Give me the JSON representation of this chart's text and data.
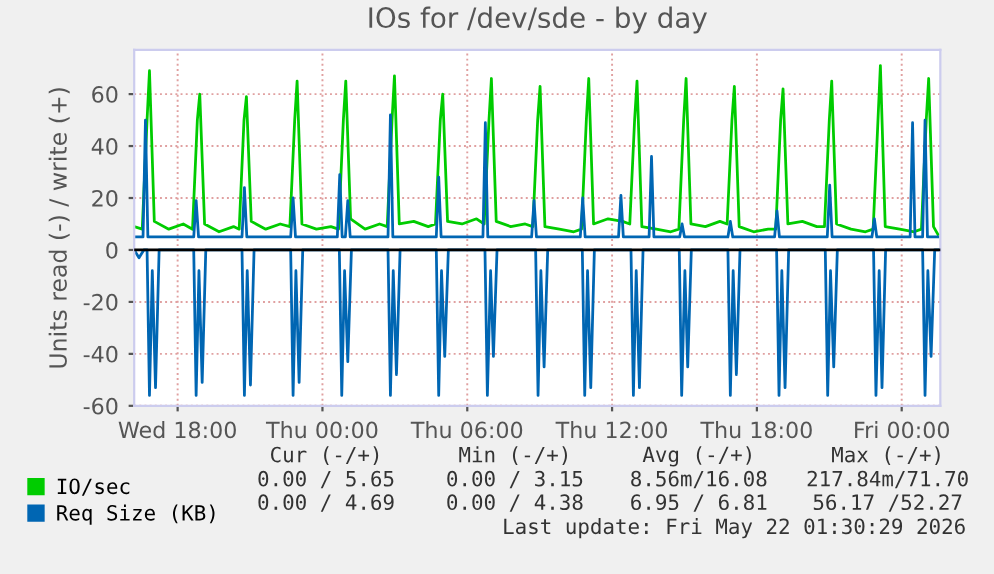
{
  "chart_data": {
    "type": "line",
    "title": "IOs for /dev/sde - by day",
    "ylabel": "Units read (-) / write (+)",
    "xlim": [
      "2026-05-20T16:12",
      "2026-05-22T01:36"
    ],
    "xticks": [
      {
        "value": "2026-05-20T18:00",
        "label": "Wed 18:00"
      },
      {
        "value": "2026-05-21T00:00",
        "label": "Thu 00:00"
      },
      {
        "value": "2026-05-21T06:00",
        "label": "Thu 06:00"
      },
      {
        "value": "2026-05-21T12:00",
        "label": "Thu 12:00"
      },
      {
        "value": "2026-05-21T18:00",
        "label": "Thu 18:00"
      },
      {
        "value": "2026-05-22T00:00",
        "label": "Fri 00:00"
      }
    ],
    "ylim": [
      -60,
      77
    ],
    "yticks": [
      -60,
      -40,
      -20,
      0,
      20,
      40,
      60
    ],
    "grid": true,
    "legend": "bottom",
    "ref_lines": [
      {
        "axis": "y",
        "value": 0,
        "color": "#000000"
      }
    ],
    "series": [
      {
        "name": "IO/sec",
        "color": "#00cc00",
        "x": [
          "2026-05-20T16:12",
          "2026-05-20T16:32",
          "2026-05-20T16:44",
          "2026-05-20T16:50",
          "2026-05-20T17:02",
          "2026-05-20T17:38",
          "2026-05-20T18:14",
          "2026-05-20T18:37",
          "2026-05-20T18:49",
          "2026-05-20T18:55",
          "2026-05-20T19:07",
          "2026-05-20T19:43",
          "2026-05-20T20:19",
          "2026-05-20T20:33",
          "2026-05-20T20:45",
          "2026-05-20T20:51",
          "2026-05-20T21:03",
          "2026-05-20T21:39",
          "2026-05-20T22:15",
          "2026-05-20T22:39",
          "2026-05-20T22:51",
          "2026-05-20T22:57",
          "2026-05-20T23:09",
          "2026-05-20T23:45",
          "2026-05-21T00:21",
          "2026-05-21T00:40",
          "2026-05-21T00:52",
          "2026-05-21T00:58",
          "2026-05-21T01:10",
          "2026-05-21T01:46",
          "2026-05-21T02:22",
          "2026-05-21T02:41",
          "2026-05-21T02:53",
          "2026-05-21T02:59",
          "2026-05-21T03:11",
          "2026-05-21T03:47",
          "2026-05-21T04:23",
          "2026-05-21T04:41",
          "2026-05-21T04:53",
          "2026-05-21T04:59",
          "2026-05-21T05:11",
          "2026-05-21T05:47",
          "2026-05-21T06:23",
          "2026-05-21T06:42",
          "2026-05-21T06:54",
          "2026-05-21T07:00",
          "2026-05-21T07:12",
          "2026-05-21T07:48",
          "2026-05-21T08:24",
          "2026-05-21T08:43",
          "2026-05-21T08:55",
          "2026-05-21T09:01",
          "2026-05-21T09:13",
          "2026-05-21T09:49",
          "2026-05-21T10:25",
          "2026-05-21T10:44",
          "2026-05-21T10:56",
          "2026-05-21T11:02",
          "2026-05-21T11:14",
          "2026-05-21T11:50",
          "2026-05-21T12:26",
          "2026-05-21T12:44",
          "2026-05-21T12:56",
          "2026-05-21T13:02",
          "2026-05-21T13:14",
          "2026-05-21T13:50",
          "2026-05-21T14:26",
          "2026-05-21T14:46",
          "2026-05-21T14:58",
          "2026-05-21T15:04",
          "2026-05-21T15:16",
          "2026-05-21T15:52",
          "2026-05-21T16:28",
          "2026-05-21T16:46",
          "2026-05-21T16:58",
          "2026-05-21T17:04",
          "2026-05-21T17:16",
          "2026-05-21T17:52",
          "2026-05-21T18:28",
          "2026-05-21T18:47",
          "2026-05-21T18:59",
          "2026-05-21T19:05",
          "2026-05-21T19:17",
          "2026-05-21T19:53",
          "2026-05-21T20:29",
          "2026-05-21T20:48",
          "2026-05-21T21:00",
          "2026-05-21T21:06",
          "2026-05-21T21:18",
          "2026-05-21T21:54",
          "2026-05-21T22:30",
          "2026-05-21T22:49",
          "2026-05-21T23:01",
          "2026-05-21T23:07",
          "2026-05-21T23:19",
          "2026-05-21T23:55",
          "2026-05-22T00:31",
          "2026-05-22T00:49",
          "2026-05-22T01:01",
          "2026-05-22T01:07",
          "2026-05-22T01:19",
          "2026-05-22T01:30"
        ],
        "values": [
          9,
          8,
          50,
          69,
          11,
          8,
          10,
          8,
          50,
          60,
          10,
          7,
          9,
          8,
          50,
          59,
          11,
          8,
          10,
          9,
          50,
          65,
          10,
          8,
          9,
          8,
          50,
          65,
          12,
          8,
          10,
          9,
          50,
          67,
          10,
          11,
          9,
          10,
          50,
          60,
          11,
          10,
          12,
          10,
          50,
          66,
          11,
          9,
          10,
          9,
          50,
          63,
          9,
          8,
          7,
          8,
          50,
          66,
          10,
          12,
          11,
          10,
          50,
          65,
          9,
          8,
          7,
          8,
          50,
          66,
          10,
          9,
          11,
          10,
          50,
          63,
          9,
          7,
          8,
          8,
          50,
          62,
          10,
          11,
          9,
          9,
          50,
          65,
          10,
          8,
          7,
          8,
          50,
          71,
          9,
          8,
          7,
          8,
          50,
          66,
          9,
          6
        ]
      },
      {
        "name": "Req Size (KB)",
        "color": "#0066b3",
        "x": [
          "2026-05-20T16:12",
          "2026-05-20T16:34",
          "2026-05-20T16:40",
          "2026-05-20T16:46",
          "2026-05-20T18:40",
          "2026-05-20T18:46",
          "2026-05-20T18:52",
          "2026-05-20T20:40",
          "2026-05-20T20:46",
          "2026-05-20T20:52",
          "2026-05-20T22:41",
          "2026-05-20T22:47",
          "2026-05-20T22:53",
          "2026-05-21T00:37",
          "2026-05-21T00:43",
          "2026-05-21T00:49",
          "2026-05-21T00:57",
          "2026-05-21T01:03",
          "2026-05-21T01:09",
          "2026-05-21T02:43",
          "2026-05-21T02:49",
          "2026-05-21T02:55",
          "2026-05-21T04:43",
          "2026-05-21T04:49",
          "2026-05-21T04:55",
          "2026-05-21T06:39",
          "2026-05-21T06:45",
          "2026-05-21T06:51",
          "2026-05-21T08:40",
          "2026-05-21T08:46",
          "2026-05-21T08:52",
          "2026-05-21T10:41",
          "2026-05-21T10:47",
          "2026-05-21T10:53",
          "2026-05-21T12:16",
          "2026-05-21T12:22",
          "2026-05-21T12:28",
          "2026-05-21T13:32",
          "2026-05-21T13:38",
          "2026-05-21T13:44",
          "2026-05-21T14:48",
          "2026-05-21T14:54",
          "2026-05-21T15:00",
          "2026-05-21T16:48",
          "2026-05-21T16:54",
          "2026-05-21T17:00",
          "2026-05-21T18:44",
          "2026-05-21T18:50",
          "2026-05-21T18:56",
          "2026-05-21T20:55",
          "2026-05-21T21:01",
          "2026-05-21T21:07",
          "2026-05-21T22:46",
          "2026-05-21T22:52",
          "2026-05-21T22:58",
          "2026-05-22T00:21",
          "2026-05-22T00:27",
          "2026-05-22T00:33",
          "2026-05-22T00:52",
          "2026-05-22T00:58",
          "2026-05-22T01:04",
          "2026-05-22T01:30"
        ],
        "values": [
          5,
          5,
          50,
          5,
          5,
          19,
          5,
          5,
          24,
          5,
          5,
          20,
          5,
          5,
          29,
          5,
          5,
          19,
          5,
          5,
          52,
          5,
          5,
          28,
          5,
          5,
          49,
          5,
          5,
          19,
          5,
          5,
          20,
          5,
          5,
          21,
          5,
          5,
          36,
          5,
          5,
          10,
          5,
          5,
          11,
          5,
          5,
          15,
          5,
          5,
          25,
          5,
          5,
          12,
          5,
          5,
          49,
          5,
          5,
          50,
          5,
          5
        ]
      },
      {
        "color": "#0066b3",
        "x": [
          "2026-05-20T16:12",
          "2026-05-20T16:24",
          "2026-05-20T16:36",
          "2026-05-20T16:44",
          "2026-05-20T16:50",
          "2026-05-20T16:57",
          "2026-05-20T17:05",
          "2026-05-20T17:14",
          "2026-05-20T18:40",
          "2026-05-20T18:46",
          "2026-05-20T18:53",
          "2026-05-20T19:01",
          "2026-05-20T19:10",
          "2026-05-20T20:40",
          "2026-05-20T20:46",
          "2026-05-20T20:53",
          "2026-05-20T21:01",
          "2026-05-20T21:10",
          "2026-05-20T22:41",
          "2026-05-20T22:47",
          "2026-05-20T22:54",
          "2026-05-20T23:02",
          "2026-05-20T23:11",
          "2026-05-21T00:42",
          "2026-05-21T00:48",
          "2026-05-21T00:55",
          "2026-05-21T01:03",
          "2026-05-21T01:12",
          "2026-05-21T02:43",
          "2026-05-21T02:49",
          "2026-05-21T02:56",
          "2026-05-21T03:04",
          "2026-05-21T03:13",
          "2026-05-21T04:43",
          "2026-05-21T04:49",
          "2026-05-21T04:56",
          "2026-05-21T05:04",
          "2026-05-21T05:13",
          "2026-05-21T06:44",
          "2026-05-21T06:50",
          "2026-05-21T06:58",
          "2026-05-21T07:05",
          "2026-05-21T07:14",
          "2026-05-21T08:50",
          "2026-05-21T08:56",
          "2026-05-21T09:03",
          "2026-05-21T09:11",
          "2026-05-21T09:20",
          "2026-05-21T10:46",
          "2026-05-21T10:52",
          "2026-05-21T10:59",
          "2026-05-21T11:07",
          "2026-05-21T11:16",
          "2026-05-21T12:47",
          "2026-05-21T12:53",
          "2026-05-21T13:00",
          "2026-05-21T13:08",
          "2026-05-21T13:17",
          "2026-05-21T14:47",
          "2026-05-21T14:53",
          "2026-05-21T15:01",
          "2026-05-21T15:08",
          "2026-05-21T15:17",
          "2026-05-21T16:48",
          "2026-05-21T16:54",
          "2026-05-21T17:01",
          "2026-05-21T17:09",
          "2026-05-21T17:18",
          "2026-05-21T18:49",
          "2026-05-21T18:55",
          "2026-05-21T19:02",
          "2026-05-21T19:10",
          "2026-05-21T19:19",
          "2026-05-21T20:50",
          "2026-05-21T20:56",
          "2026-05-21T21:03",
          "2026-05-21T21:11",
          "2026-05-21T21:20",
          "2026-05-21T22:50",
          "2026-05-21T22:56",
          "2026-05-21T23:04",
          "2026-05-21T23:11",
          "2026-05-21T23:20",
          "2026-05-22T00:52",
          "2026-05-22T00:58",
          "2026-05-22T01:05",
          "2026-05-22T01:13",
          "2026-05-22T01:22",
          "2026-05-22T01:30"
        ],
        "values": [
          0,
          -3,
          0,
          0,
          -56,
          -8,
          -53,
          0,
          0,
          -56,
          -8,
          -51,
          0,
          0,
          -56,
          -8,
          -52,
          0,
          0,
          -56,
          -8,
          -51,
          0,
          0,
          -56,
          -8,
          -43,
          0,
          0,
          -56,
          -8,
          -48,
          0,
          0,
          -56,
          -8,
          -41,
          0,
          0,
          -56,
          -8,
          -41,
          0,
          0,
          -56,
          -8,
          -45,
          0,
          0,
          -56,
          -8,
          -53,
          0,
          0,
          -56,
          -8,
          -53,
          0,
          0,
          -56,
          -8,
          -45,
          0,
          0,
          -56,
          -8,
          -48,
          0,
          0,
          -56,
          -8,
          -53,
          0,
          0,
          -56,
          -8,
          -45,
          0,
          0,
          -56,
          -8,
          -53,
          0,
          0,
          -56,
          -8,
          -41,
          0,
          0
        ]
      }
    ],
    "annotations": [
      "Cur (-/+)",
      "Min (-/+)",
      "Avg (-/+)",
      "Max (-/+)",
      "0.00 / 5.65",
      "0.00 / 3.15",
      "8.56m/16.08",
      "217.84m/71.70",
      "0.00 / 4.69",
      "0.00 / 4.38",
      "6.95 / 6.81",
      "56.17 /52.27",
      "Last update: Fri May 22 01:30:29 2026"
    ]
  }
}
